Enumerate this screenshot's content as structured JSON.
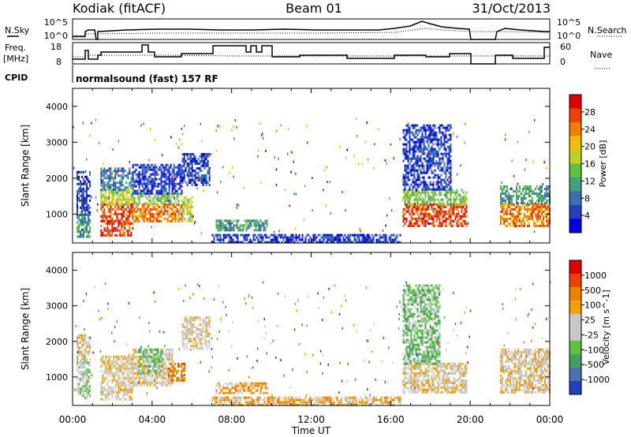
{
  "header": {
    "station": "Kodiak (fitACF)",
    "beam": "Beam 01",
    "date": "31/Oct/2013"
  },
  "meta_panels": {
    "nsky_label": "N.Sky",
    "nsearch_label": "N.Search",
    "freq_label": "Freq.",
    "freq_unit": "[MHz]",
    "nave_label": "Nave",
    "cpid_label": "CPID",
    "cpid_value": "normalsound (fast) 157 RF",
    "noise_ticks": [
      "10^5",
      "10^0"
    ],
    "freq_ticks": [
      "18",
      "8"
    ],
    "nave_ticks": [
      "60",
      "0"
    ]
  },
  "chart_data": [
    {
      "type": "heatmap",
      "name": "power",
      "ylabel": "Slant Range [km]",
      "ylim": [
        200,
        4500
      ],
      "yticks": [
        1000,
        2000,
        3000,
        4000
      ],
      "xlim": [
        0,
        24
      ],
      "colorbar": {
        "label": "Power [dB]",
        "ticks": [
          "28",
          "24",
          "20",
          "16",
          "12",
          "8",
          "4"
        ],
        "colors": [
          "#0000e0",
          "#2040c0",
          "#3a6fb0",
          "#40a080",
          "#60c040",
          "#c0d020",
          "#f0c000",
          "#f08000",
          "#f04000",
          "#e00000"
        ]
      },
      "regions": [
        {
          "t0": 0.2,
          "t1": 0.9,
          "r0": 400,
          "r1": 1000,
          "level": 3
        },
        {
          "t0": 0.2,
          "t1": 0.9,
          "r0": 1000,
          "r1": 2200,
          "level": 1
        },
        {
          "t0": 1.4,
          "t1": 3.0,
          "r0": 400,
          "r1": 1300,
          "level": 8
        },
        {
          "t0": 1.4,
          "t1": 3.0,
          "r0": 1300,
          "r1": 1700,
          "level": 5
        },
        {
          "t0": 1.4,
          "t1": 3.0,
          "r0": 1700,
          "r1": 2300,
          "level": 2
        },
        {
          "t0": 3.0,
          "t1": 5.5,
          "r0": 800,
          "r1": 1300,
          "level": 7
        },
        {
          "t0": 3.0,
          "t1": 5.5,
          "r0": 1300,
          "r1": 1600,
          "level": 4
        },
        {
          "t0": 3.0,
          "t1": 5.5,
          "r0": 1600,
          "r1": 2400,
          "level": 1
        },
        {
          "t0": 5.5,
          "t1": 6.0,
          "r0": 800,
          "r1": 1500,
          "level": 5
        },
        {
          "t0": 5.5,
          "t1": 6.9,
          "r0": 1800,
          "r1": 2700,
          "level": 1
        },
        {
          "t0": 7.2,
          "t1": 9.8,
          "r0": 550,
          "r1": 850,
          "level": 3
        },
        {
          "t0": 7.0,
          "t1": 16.5,
          "r0": 250,
          "r1": 450,
          "level": 1
        },
        {
          "t0": 16.6,
          "t1": 19.8,
          "r0": 700,
          "r1": 1300,
          "level": 8
        },
        {
          "t0": 16.6,
          "t1": 19.8,
          "r0": 1300,
          "r1": 1700,
          "level": 4
        },
        {
          "t0": 16.6,
          "t1": 19.0,
          "r0": 1700,
          "r1": 3500,
          "level": 1
        },
        {
          "t0": 21.5,
          "t1": 24.0,
          "r0": 700,
          "r1": 1300,
          "level": 7
        },
        {
          "t0": 21.5,
          "t1": 24.0,
          "r0": 1300,
          "r1": 1800,
          "level": 3
        }
      ]
    },
    {
      "type": "heatmap",
      "name": "velocity",
      "xlabel": "Time UT",
      "ylabel": "Slant Range [km]",
      "ylim": [
        200,
        4500
      ],
      "yticks": [
        1000,
        2000,
        3000,
        4000
      ],
      "xlim": [
        0,
        24
      ],
      "xticks": [
        "00:00",
        "04:00",
        "08:00",
        "12:00",
        "16:00",
        "20:00",
        "00:00"
      ],
      "colorbar": {
        "label": "Velocity [m s^-1]",
        "ticks": [
          "1000",
          "500",
          "100",
          "25",
          "-25",
          "-100",
          "-500",
          "-1000"
        ],
        "colors": [
          "#2040c0",
          "#4a70b0",
          "#40a060",
          "#60c040",
          "#c8c8c8",
          "#c8c8c8",
          "#f0a000",
          "#f08000",
          "#f04000",
          "#e00000"
        ]
      },
      "regions": [
        {
          "t0": 0.2,
          "t1": 0.9,
          "r0": 400,
          "r1": 1500,
          "level": 4
        },
        {
          "t0": 0.2,
          "t1": 0.9,
          "r0": 1500,
          "r1": 2200,
          "level": 5
        },
        {
          "t0": 1.4,
          "t1": 3.0,
          "r0": 400,
          "r1": 1600,
          "level": 5
        },
        {
          "t0": 3.0,
          "t1": 5.0,
          "r0": 800,
          "r1": 1800,
          "level": 5
        },
        {
          "t0": 3.3,
          "t1": 4.5,
          "r0": 1100,
          "r1": 1800,
          "level": 3
        },
        {
          "t0": 4.8,
          "t1": 5.6,
          "r0": 900,
          "r1": 1400,
          "level": 7
        },
        {
          "t0": 5.5,
          "t1": 6.9,
          "r0": 1800,
          "r1": 2700,
          "level": 5
        },
        {
          "t0": 7.2,
          "t1": 9.8,
          "r0": 550,
          "r1": 850,
          "level": 6
        },
        {
          "t0": 7.0,
          "t1": 16.5,
          "r0": 250,
          "r1": 450,
          "level": 6
        },
        {
          "t0": 16.6,
          "t1": 19.8,
          "r0": 600,
          "r1": 1400,
          "level": 5
        },
        {
          "t0": 16.6,
          "t1": 18.5,
          "r0": 1400,
          "r1": 3600,
          "level": 3
        },
        {
          "t0": 21.5,
          "t1": 24.0,
          "r0": 600,
          "r1": 1800,
          "level": 5
        }
      ]
    }
  ]
}
